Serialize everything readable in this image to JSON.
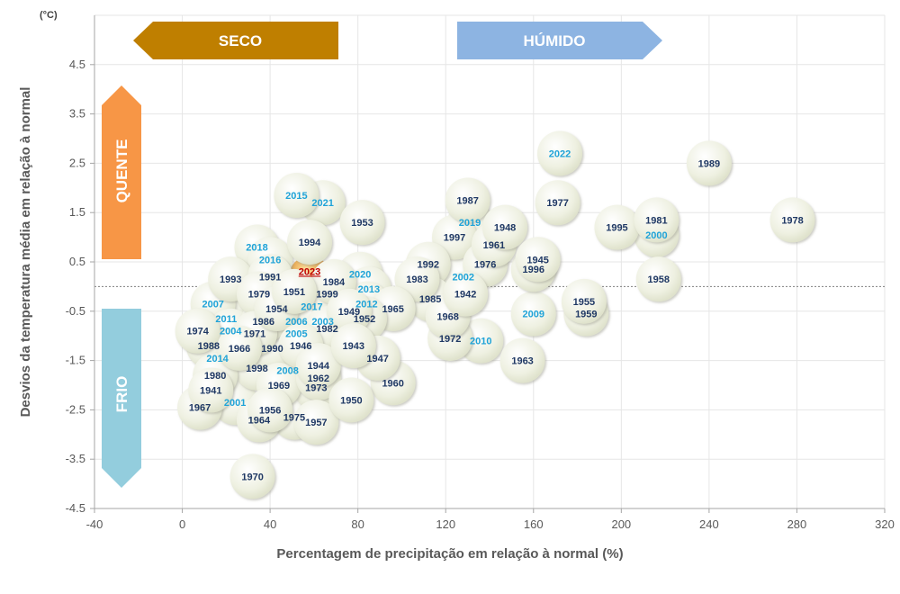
{
  "chart_data": {
    "type": "scatter",
    "title": "",
    "xlabel": "Percentagem de precipitação em relação à normal (%)",
    "ylabel": "Desvios da temperatura média em relação à normal",
    "yunit": "(°C)",
    "xlim": [
      -40,
      320
    ],
    "ylim": [
      -4.5,
      5.5
    ],
    "xticks": [
      -40,
      0,
      40,
      80,
      120,
      160,
      200,
      240,
      280,
      320
    ],
    "yticks": [
      -4.5,
      -3.5,
      -2.5,
      -1.5,
      -0.5,
      0.5,
      1.5,
      2.5,
      3.5,
      4.5
    ],
    "grid": true,
    "colors": {
      "bubble_fill": "#eef0e1",
      "highlight_bubble": "#d9822b",
      "recent_year_label": "#1fa3d8",
      "older_year_label": "#1f3864",
      "highlight_label": "#c00000",
      "seco": "#bf7f00",
      "humido": "#8db4e2",
      "quente": "#f79646",
      "frio": "#93cddd"
    },
    "regions": {
      "seco": "SECO",
      "humido": "HÚMIDO",
      "quente": "QUENTE",
      "frio": "FRIO"
    },
    "points": [
      {
        "year": "2023",
        "x": 58,
        "y": 0.2,
        "highlight": true
      },
      {
        "year": "2022",
        "x": 172,
        "y": 2.7,
        "recent": true
      },
      {
        "year": "2021",
        "x": 64,
        "y": 1.7,
        "recent": true
      },
      {
        "year": "2020",
        "x": 81,
        "y": 0.25,
        "recent": true
      },
      {
        "year": "2019",
        "x": 131,
        "y": 1.3,
        "recent": true
      },
      {
        "year": "2018",
        "x": 34,
        "y": 0.8,
        "recent": true
      },
      {
        "year": "2017",
        "x": 59,
        "y": -0.4,
        "recent": true
      },
      {
        "year": "2016",
        "x": 40,
        "y": 0.55,
        "recent": true
      },
      {
        "year": "2015",
        "x": 52,
        "y": 1.85,
        "recent": true
      },
      {
        "year": "2014",
        "x": 16,
        "y": -1.45,
        "recent": true
      },
      {
        "year": "2013",
        "x": 85,
        "y": -0.05,
        "recent": true
      },
      {
        "year": "2012",
        "x": 84,
        "y": -0.35,
        "recent": true
      },
      {
        "year": "2011",
        "x": 20,
        "y": -0.65,
        "recent": true
      },
      {
        "year": "2010",
        "x": 136,
        "y": -1.1,
        "recent": true
      },
      {
        "year": "2009",
        "x": 160,
        "y": -0.55,
        "recent": true
      },
      {
        "year": "2008",
        "x": 48,
        "y": -1.7,
        "recent": true
      },
      {
        "year": "2007",
        "x": 14,
        "y": -0.35,
        "recent": true
      },
      {
        "year": "2006",
        "x": 52,
        "y": -0.7,
        "recent": true
      },
      {
        "year": "2005",
        "x": 52,
        "y": -0.95,
        "recent": true
      },
      {
        "year": "2004",
        "x": 22,
        "y": -0.9,
        "recent": true
      },
      {
        "year": "2003",
        "x": 64,
        "y": -0.7,
        "recent": true
      },
      {
        "year": "2002",
        "x": 128,
        "y": 0.2,
        "recent": true
      },
      {
        "year": "2001",
        "x": 24,
        "y": -2.35,
        "recent": true
      },
      {
        "year": "2000",
        "x": 216,
        "y": 1.05,
        "recent": true
      },
      {
        "year": "1999",
        "x": 66,
        "y": -0.15
      },
      {
        "year": "1998",
        "x": 34,
        "y": -1.65
      },
      {
        "year": "1997",
        "x": 124,
        "y": 1.0
      },
      {
        "year": "1996",
        "x": 160,
        "y": 0.35
      },
      {
        "year": "1995",
        "x": 198,
        "y": 1.2
      },
      {
        "year": "1994",
        "x": 58,
        "y": 0.9
      },
      {
        "year": "1993",
        "x": 22,
        "y": 0.15
      },
      {
        "year": "1992",
        "x": 112,
        "y": 0.45
      },
      {
        "year": "1991",
        "x": 40,
        "y": 0.2
      },
      {
        "year": "1990",
        "x": 41,
        "y": -1.25
      },
      {
        "year": "1989",
        "x": 240,
        "y": 2.5
      },
      {
        "year": "1988",
        "x": 12,
        "y": -1.2
      },
      {
        "year": "1987",
        "x": 130,
        "y": 1.75
      },
      {
        "year": "1986",
        "x": 37,
        "y": -0.7
      },
      {
        "year": "1985",
        "x": 113,
        "y": -0.25
      },
      {
        "year": "1984",
        "x": 69,
        "y": 0.1
      },
      {
        "year": "1983",
        "x": 107,
        "y": 0.15
      },
      {
        "year": "1982",
        "x": 66,
        "y": -0.85
      },
      {
        "year": "1981",
        "x": 216,
        "y": 1.35
      },
      {
        "year": "1980",
        "x": 15,
        "y": -1.8
      },
      {
        "year": "1979",
        "x": 35,
        "y": -0.15
      },
      {
        "year": "1978",
        "x": 278,
        "y": 1.35
      },
      {
        "year": "1977",
        "x": 171,
        "y": 1.7
      },
      {
        "year": "1976",
        "x": 138,
        "y": 0.45
      },
      {
        "year": "1975",
        "x": 51,
        "y": -2.65
      },
      {
        "year": "1974",
        "x": 7,
        "y": -0.9
      },
      {
        "year": "1973",
        "x": 61,
        "y": -2.05
      },
      {
        "year": "1972",
        "x": 122,
        "y": -1.05
      },
      {
        "year": "1971",
        "x": 33,
        "y": -0.95
      },
      {
        "year": "1970",
        "x": 32,
        "y": -3.85
      },
      {
        "year": "1969",
        "x": 44,
        "y": -2.0
      },
      {
        "year": "1968",
        "x": 121,
        "y": -0.6
      },
      {
        "year": "1967",
        "x": 8,
        "y": -2.45
      },
      {
        "year": "1966",
        "x": 26,
        "y": -1.25
      },
      {
        "year": "1965",
        "x": 96,
        "y": -0.45
      },
      {
        "year": "1964",
        "x": 35,
        "y": -2.7
      },
      {
        "year": "1963",
        "x": 155,
        "y": -1.5
      },
      {
        "year": "1962",
        "x": 62,
        "y": -1.85
      },
      {
        "year": "1961",
        "x": 142,
        "y": 0.85
      },
      {
        "year": "1960",
        "x": 96,
        "y": -1.95
      },
      {
        "year": "1959",
        "x": 184,
        "y": -0.55
      },
      {
        "year": "1958",
        "x": 217,
        "y": 0.15
      },
      {
        "year": "1957",
        "x": 61,
        "y": -2.75
      },
      {
        "year": "1956",
        "x": 40,
        "y": -2.5
      },
      {
        "year": "1955",
        "x": 183,
        "y": -0.3
      },
      {
        "year": "1954",
        "x": 43,
        "y": -0.45
      },
      {
        "year": "1953",
        "x": 82,
        "y": 1.3
      },
      {
        "year": "1952",
        "x": 83,
        "y": -0.65
      },
      {
        "year": "1951",
        "x": 51,
        "y": -0.1
      },
      {
        "year": "1950",
        "x": 77,
        "y": -2.3
      },
      {
        "year": "1949",
        "x": 76,
        "y": -0.5
      },
      {
        "year": "1948",
        "x": 147,
        "y": 1.2
      },
      {
        "year": "1947",
        "x": 89,
        "y": -1.45
      },
      {
        "year": "1946",
        "x": 54,
        "y": -1.2
      },
      {
        "year": "1945",
        "x": 162,
        "y": 0.55
      },
      {
        "year": "1944",
        "x": 62,
        "y": -1.6
      },
      {
        "year": "1943",
        "x": 78,
        "y": -1.2
      },
      {
        "year": "1942",
        "x": 129,
        "y": -0.15
      },
      {
        "year": "1941",
        "x": 13,
        "y": -2.1
      }
    ]
  }
}
